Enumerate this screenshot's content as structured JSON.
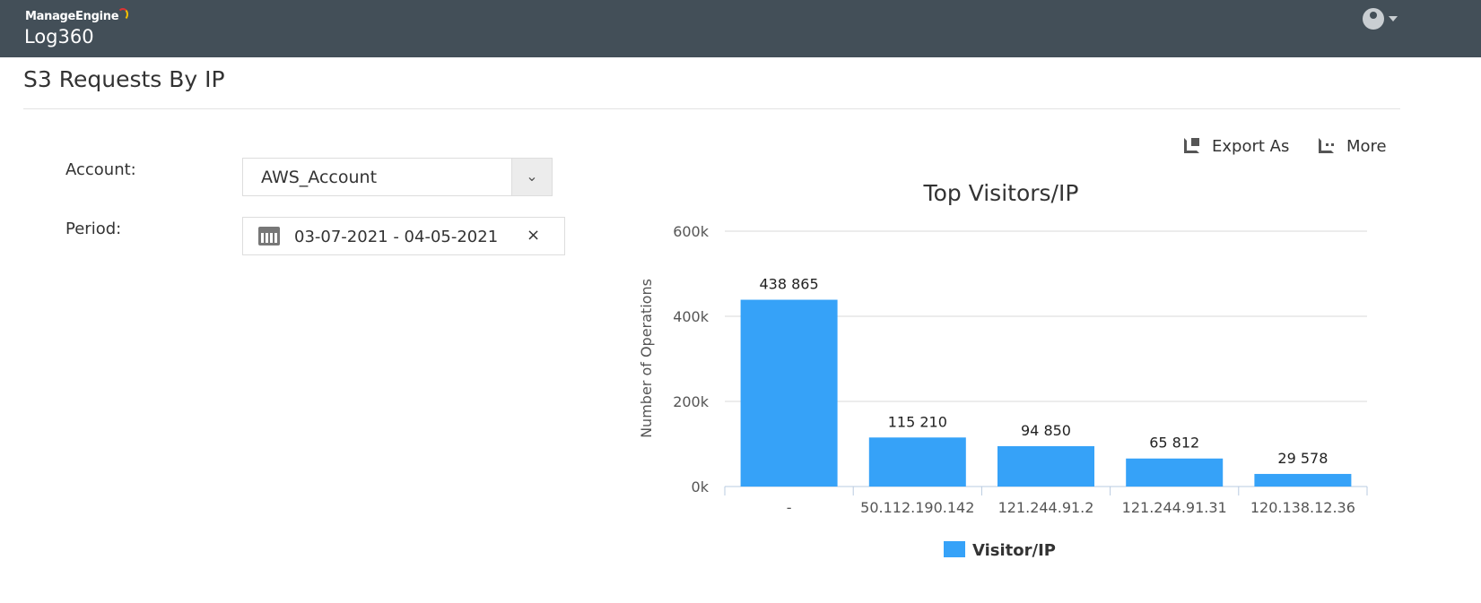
{
  "header": {
    "brand": "ManageEngine",
    "product": "Log360",
    "user_icon": "user-avatar-icon"
  },
  "page": {
    "title": "S3 Requests By IP"
  },
  "filters": {
    "account_label": "Account:",
    "account_value": "AWS_Account",
    "period_label": "Period:",
    "period_value": "03-07-2021 - 04-05-2021",
    "clear_label": "×"
  },
  "toolbar": {
    "export_label": "Export As",
    "more_label": "More"
  },
  "colors": {
    "header": "#434f58",
    "bar": "#36a2f8"
  },
  "chart_data": {
    "type": "bar",
    "title": "Top Visitors/IP",
    "xlabel": "",
    "ylabel": "Number of Operations",
    "categories": [
      "-",
      "50.112.190.142",
      "121.244.91.2",
      "121.244.91.31",
      "120.138.12.36"
    ],
    "series": [
      {
        "name": "Visitor/IP",
        "values": [
          438865,
          115210,
          94850,
          65812,
          29578
        ]
      }
    ],
    "data_labels": [
      "438 865",
      "115 210",
      "94 850",
      "65 812",
      "29 578"
    ],
    "yticks": [
      "0k",
      "200k",
      "400k",
      "600k"
    ],
    "ylim": [
      0,
      600000
    ],
    "grid": true,
    "legend": "bottom"
  }
}
